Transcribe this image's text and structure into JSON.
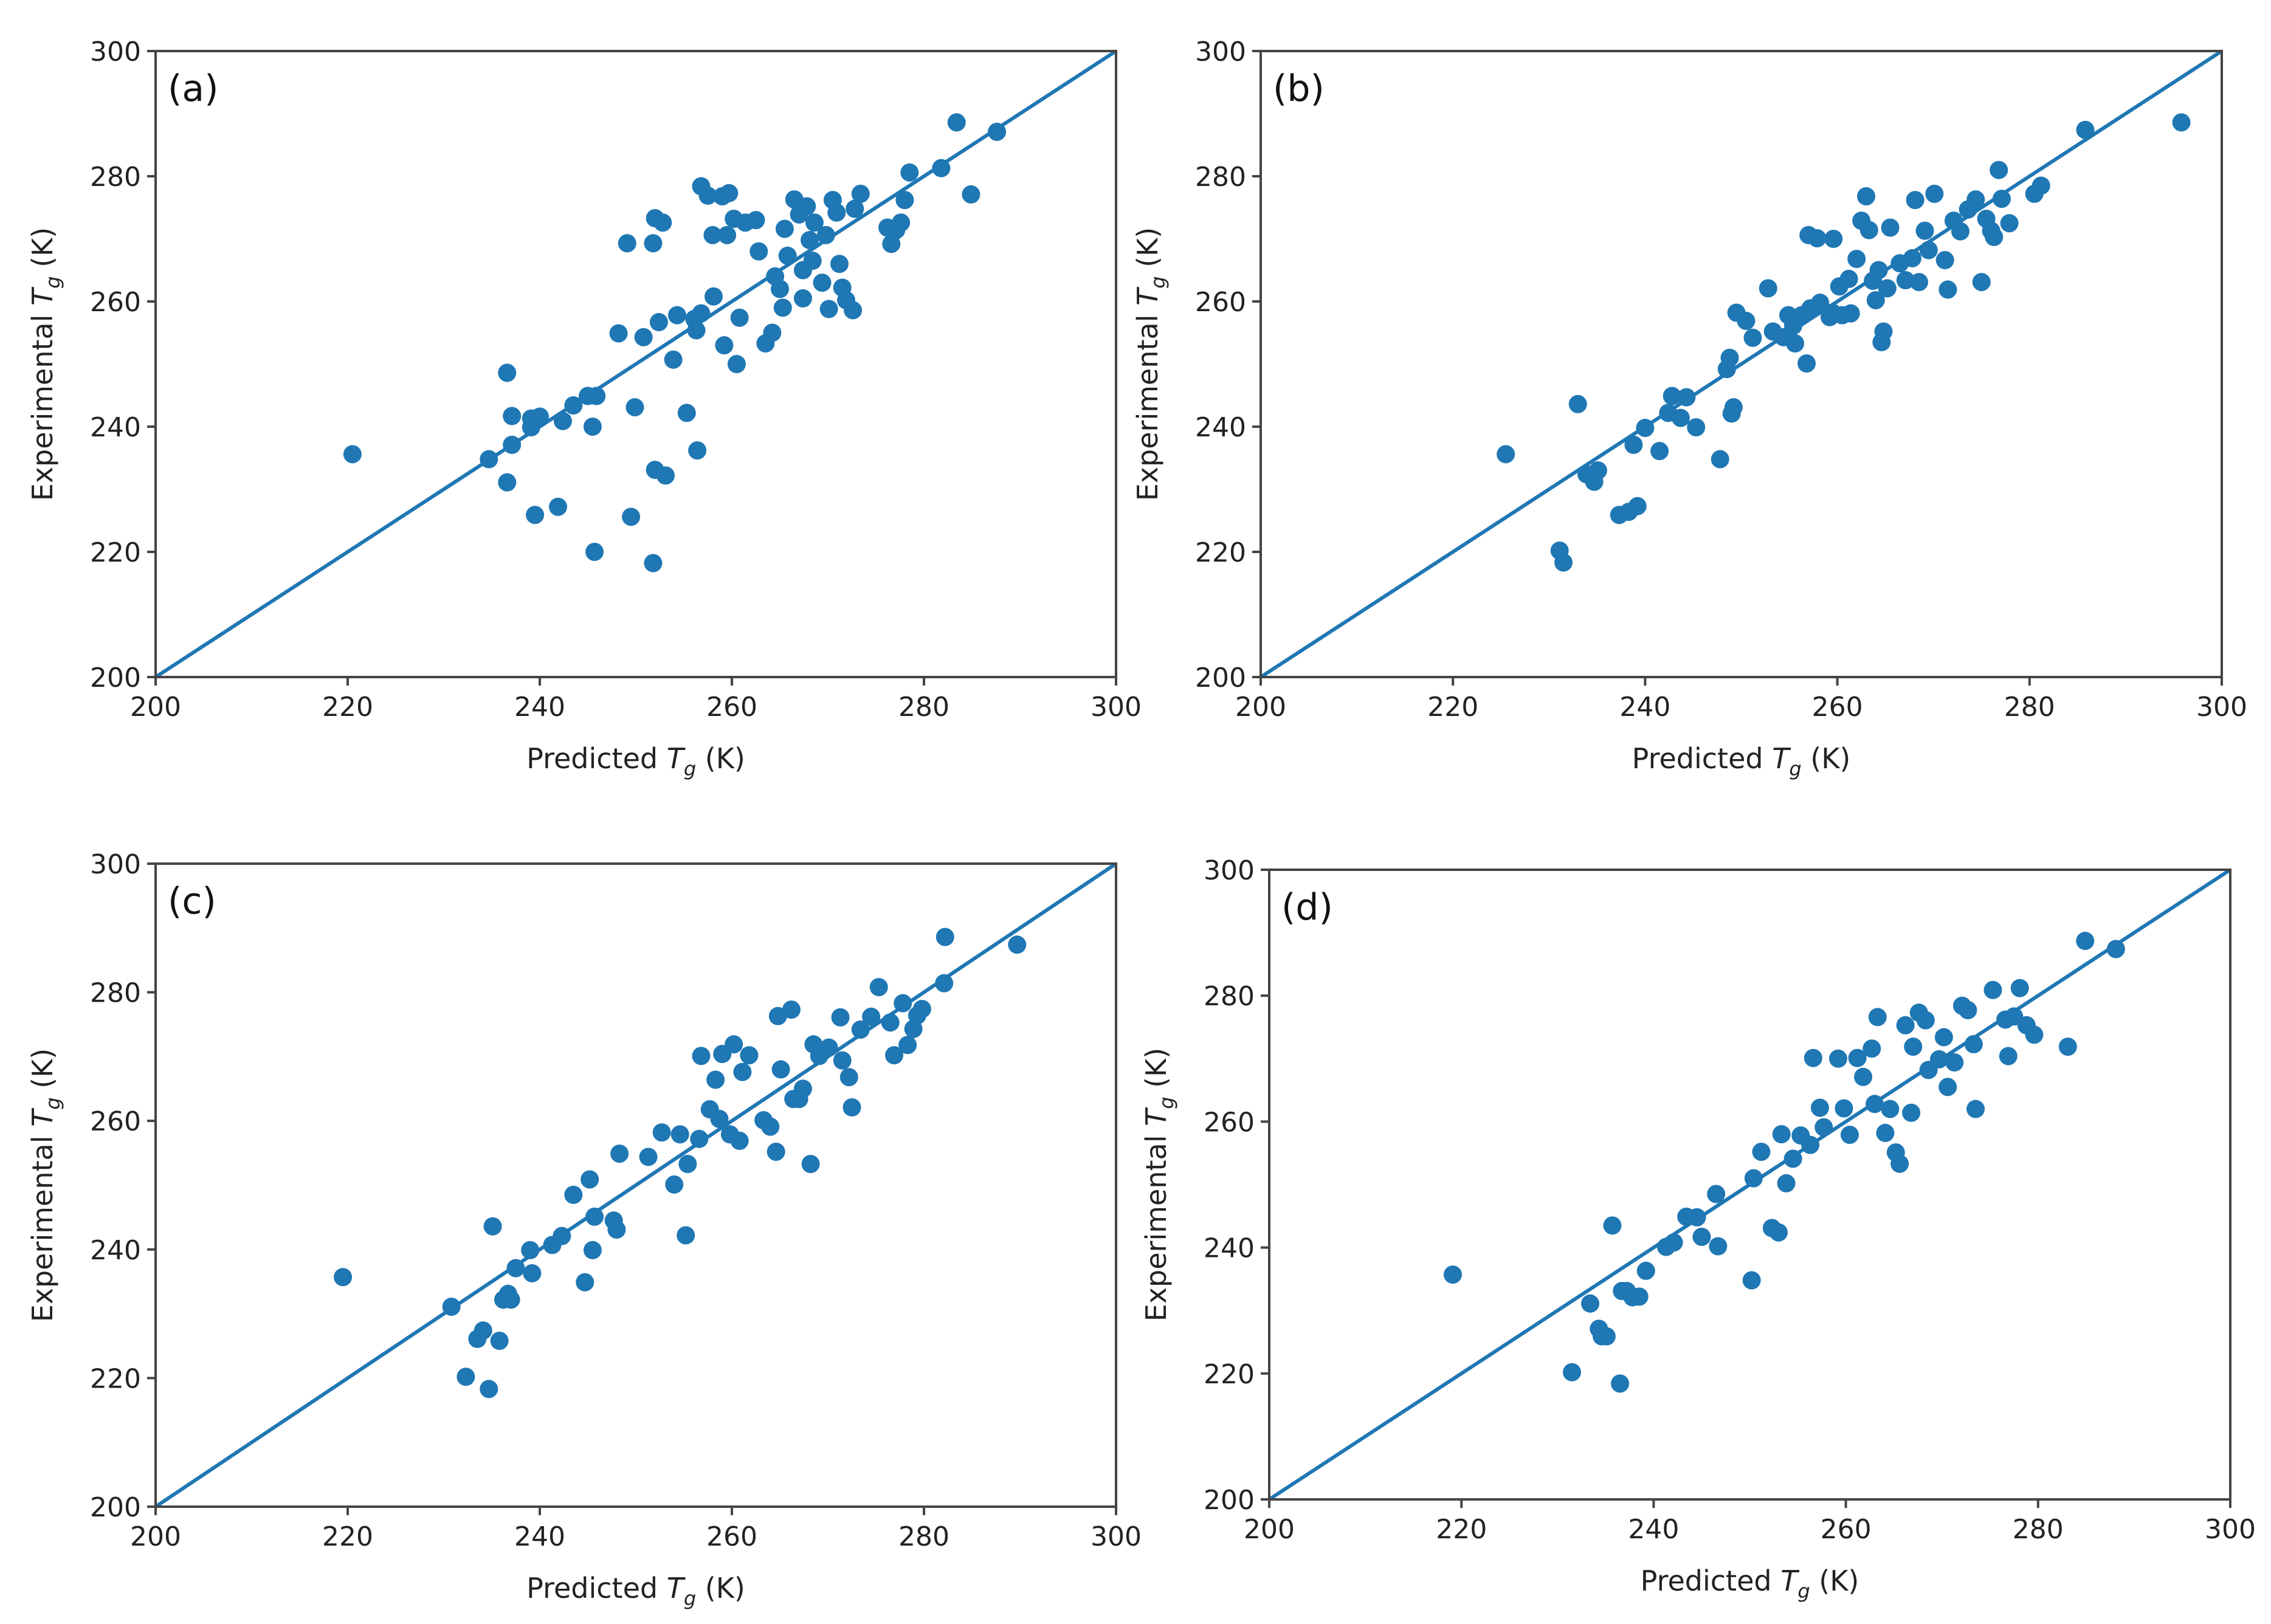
{
  "colors": {
    "marker": "#1f77b4",
    "line": "#1f77b4",
    "axis": "#444444"
  },
  "chart_data": [
    {
      "type": "scatter",
      "panel_label": "(a)",
      "xlabel_prefix": "Predicted ",
      "xlabel_symbol": "T",
      "xlabel_sub": "g",
      "xlabel_suffix": " (K)",
      "ylabel_prefix": "Experimental ",
      "ylabel_symbol": "T",
      "ylabel_sub": "g",
      "ylabel_suffix": " (K)",
      "xlim": [
        200,
        300
      ],
      "ylim": [
        200,
        300
      ],
      "xticks": [
        200,
        220,
        240,
        260,
        280,
        300
      ],
      "yticks": [
        200,
        220,
        240,
        260,
        280,
        300
      ],
      "reference_line": {
        "from": [
          200,
          200
        ],
        "to": [
          300,
          300
        ]
      },
      "points": [
        [
          220.5,
          235.6
        ],
        [
          234.7,
          234.8
        ],
        [
          236.6,
          248.6
        ],
        [
          236.6,
          231.1
        ],
        [
          237.1,
          241.7
        ],
        [
          237.1,
          237.1
        ],
        [
          239.1,
          241.3
        ],
        [
          239.1,
          239.9
        ],
        [
          239.5,
          225.9
        ],
        [
          240,
          241.6
        ],
        [
          241.9,
          227.2
        ],
        [
          242.4,
          240.9
        ],
        [
          243.5,
          243.4
        ],
        [
          245,
          244.9
        ],
        [
          245.5,
          240
        ],
        [
          245.7,
          220
        ],
        [
          245.9,
          244.9
        ],
        [
          248.2,
          254.9
        ],
        [
          249.1,
          269.3
        ],
        [
          249.5,
          225.6
        ],
        [
          249.9,
          243.1
        ],
        [
          250.8,
          254.3
        ],
        [
          251.8,
          218.2
        ],
        [
          251.8,
          269.3
        ],
        [
          252,
          273.3
        ],
        [
          252,
          233.1
        ],
        [
          252.4,
          256.7
        ],
        [
          252.8,
          272.6
        ],
        [
          253.1,
          232.2
        ],
        [
          253.9,
          250.7
        ],
        [
          254.3,
          257.8
        ],
        [
          255.3,
          242.2
        ],
        [
          256.1,
          257.2
        ],
        [
          256.3,
          255.4
        ],
        [
          256.4,
          236.2
        ],
        [
          256.8,
          278.4
        ],
        [
          256.8,
          258.1
        ],
        [
          257.5,
          276.9
        ],
        [
          258,
          270.6
        ],
        [
          258.1,
          260.8
        ],
        [
          259,
          276.8
        ],
        [
          259.2,
          253
        ],
        [
          259.5,
          270.6
        ],
        [
          259.7,
          277.3
        ],
        [
          260.2,
          273.2
        ],
        [
          260.5,
          250
        ],
        [
          260.8,
          257.4
        ],
        [
          261.4,
          272.6
        ],
        [
          262.5,
          273
        ],
        [
          262.8,
          268
        ],
        [
          263.5,
          253.3
        ],
        [
          264.2,
          255
        ],
        [
          264.5,
          264
        ],
        [
          265,
          262
        ],
        [
          265.3,
          259
        ],
        [
          265.5,
          271.6
        ],
        [
          265.8,
          267.3
        ],
        [
          266.5,
          276.3
        ],
        [
          267,
          273.9
        ],
        [
          267.4,
          265
        ],
        [
          267.4,
          260.5
        ],
        [
          267.8,
          275.2
        ],
        [
          268.1,
          269.8
        ],
        [
          268.4,
          266.5
        ],
        [
          268.6,
          272.6
        ],
        [
          269.4,
          263
        ],
        [
          269.8,
          270.6
        ],
        [
          270.1,
          258.8
        ],
        [
          270.5,
          276.2
        ],
        [
          270.9,
          274.2
        ],
        [
          271.2,
          266
        ],
        [
          271.5,
          262.2
        ],
        [
          271.9,
          260.2
        ],
        [
          272.6,
          258.6
        ],
        [
          272.8,
          274.8
        ],
        [
          273.4,
          277.2
        ],
        [
          276.2,
          271.8
        ],
        [
          276.6,
          269.2
        ],
        [
          277.1,
          271.4
        ],
        [
          277.6,
          272.6
        ],
        [
          278,
          276.2
        ],
        [
          278.5,
          280.6
        ],
        [
          281.8,
          281.3
        ],
        [
          283.4,
          288.6
        ],
        [
          284.9,
          277.1
        ],
        [
          287.6,
          287.1
        ]
      ]
    },
    {
      "type": "scatter",
      "panel_label": "(b)",
      "xlabel_prefix": "Predicted ",
      "xlabel_symbol": "T",
      "xlabel_sub": "g",
      "xlabel_suffix": " (K)",
      "ylabel_prefix": "Experimental ",
      "ylabel_symbol": "T",
      "ylabel_sub": "g",
      "ylabel_suffix": " (K)",
      "xlim": [
        200,
        300
      ],
      "ylim": [
        200,
        300
      ],
      "xticks": [
        200,
        220,
        240,
        260,
        280,
        300
      ],
      "yticks": [
        200,
        220,
        240,
        260,
        280,
        300
      ],
      "reference_line": {
        "from": [
          200,
          200
        ],
        "to": [
          300,
          300
        ]
      },
      "points": [
        [
          225.5,
          235.6
        ],
        [
          231.1,
          220.2
        ],
        [
          231.5,
          218.3
        ],
        [
          233,
          243.6
        ],
        [
          233.9,
          232.4
        ],
        [
          234.7,
          231.2
        ],
        [
          235.1,
          233
        ],
        [
          237.3,
          225.9
        ],
        [
          238.3,
          226.4
        ],
        [
          238.8,
          237.1
        ],
        [
          239.2,
          227.3
        ],
        [
          240,
          239.8
        ],
        [
          241.5,
          236.1
        ],
        [
          242.4,
          242.2
        ],
        [
          242.8,
          244.9
        ],
        [
          243.7,
          241.4
        ],
        [
          244.3,
          244.7
        ],
        [
          245.3,
          239.9
        ],
        [
          247.8,
          234.8
        ],
        [
          248.5,
          249.2
        ],
        [
          248.8,
          251
        ],
        [
          249,
          242.1
        ],
        [
          249.2,
          243.1
        ],
        [
          249.5,
          258.2
        ],
        [
          250.5,
          256.9
        ],
        [
          251.2,
          254.2
        ],
        [
          252.8,
          262.1
        ],
        [
          253.3,
          255.2
        ],
        [
          254.4,
          254.3
        ],
        [
          254.9,
          257.8
        ],
        [
          255.4,
          256.1
        ],
        [
          255.6,
          253.3
        ],
        [
          256.3,
          257.8
        ],
        [
          256.8,
          250.1
        ],
        [
          257.2,
          258.9
        ],
        [
          257,
          270.6
        ],
        [
          257.9,
          270.1
        ],
        [
          258.2,
          259.8
        ],
        [
          259.2,
          257.5
        ],
        [
          259.5,
          258.2
        ],
        [
          259.6,
          270
        ],
        [
          260.2,
          262.4
        ],
        [
          260.5,
          257.8
        ],
        [
          261.2,
          263.6
        ],
        [
          261.4,
          258.1
        ],
        [
          262,
          266.8
        ],
        [
          262.5,
          272.9
        ],
        [
          263,
          276.8
        ],
        [
          263.3,
          271.4
        ],
        [
          263.7,
          263.3
        ],
        [
          264,
          260.2
        ],
        [
          264.3,
          265
        ],
        [
          264.6,
          253.5
        ],
        [
          264.8,
          255.2
        ],
        [
          265.2,
          262.1
        ],
        [
          265.5,
          271.8
        ],
        [
          266.5,
          266.1
        ],
        [
          267.1,
          263.4
        ],
        [
          267.8,
          266.9
        ],
        [
          268.1,
          276.2
        ],
        [
          268.5,
          263.1
        ],
        [
          269.1,
          271.3
        ],
        [
          269.5,
          268.2
        ],
        [
          270.1,
          277.2
        ],
        [
          271.2,
          266.6
        ],
        [
          271.5,
          261.9
        ],
        [
          272.1,
          272.9
        ],
        [
          272.8,
          271.2
        ],
        [
          273.6,
          274.7
        ],
        [
          274.4,
          276.3
        ],
        [
          275,
          263.1
        ],
        [
          275.5,
          273.2
        ],
        [
          276,
          271.3
        ],
        [
          276.3,
          270.3
        ],
        [
          276.8,
          281
        ],
        [
          277.1,
          276.4
        ],
        [
          277.9,
          272.5
        ],
        [
          280.5,
          277.2
        ],
        [
          281.2,
          278.5
        ],
        [
          285.8,
          287.4
        ],
        [
          295.8,
          288.6
        ]
      ]
    },
    {
      "type": "scatter",
      "panel_label": "(c)",
      "xlabel_prefix": "Predicted ",
      "xlabel_symbol": "T",
      "xlabel_sub": "g",
      "xlabel_suffix": " (K)",
      "ylabel_prefix": "Experimental ",
      "ylabel_symbol": "T",
      "ylabel_sub": "g",
      "ylabel_suffix": " (K)",
      "xlim": [
        200,
        300
      ],
      "ylim": [
        200,
        300
      ],
      "xticks": [
        200,
        220,
        240,
        260,
        280,
        300
      ],
      "yticks": [
        200,
        220,
        240,
        260,
        280,
        300
      ],
      "reference_line": {
        "from": [
          200,
          200
        ],
        "to": [
          300,
          300
        ]
      },
      "points": [
        [
          219.5,
          235.7
        ],
        [
          230.8,
          231.1
        ],
        [
          232.3,
          220.2
        ],
        [
          233.5,
          226.1
        ],
        [
          234.1,
          227.4
        ],
        [
          234.7,
          218.3
        ],
        [
          235.1,
          243.6
        ],
        [
          235.8,
          225.8
        ],
        [
          236.2,
          232.2
        ],
        [
          236.7,
          233.1
        ],
        [
          237,
          232.2
        ],
        [
          237.5,
          237.1
        ],
        [
          239,
          239.9
        ],
        [
          239.2,
          236.3
        ],
        [
          241.3,
          240.7
        ],
        [
          242.3,
          242.1
        ],
        [
          243.5,
          248.5
        ],
        [
          244.7,
          234.9
        ],
        [
          245.2,
          250.9
        ],
        [
          245.5,
          239.9
        ],
        [
          245.7,
          245.1
        ],
        [
          247.7,
          244.5
        ],
        [
          248,
          243.1
        ],
        [
          248.3,
          254.9
        ],
        [
          251.3,
          254.4
        ],
        [
          252.7,
          258.2
        ],
        [
          254,
          250.1
        ],
        [
          254.6,
          257.9
        ],
        [
          255.2,
          242.2
        ],
        [
          255.4,
          253.3
        ],
        [
          256.6,
          257.2
        ],
        [
          256.8,
          270.1
        ],
        [
          257.7,
          261.8
        ],
        [
          258.3,
          266.4
        ],
        [
          258.7,
          260.3
        ],
        [
          259,
          270.4
        ],
        [
          259.8,
          257.9
        ],
        [
          260.2,
          271.9
        ],
        [
          260.8,
          256.9
        ],
        [
          261.1,
          267.6
        ],
        [
          261.8,
          270.2
        ],
        [
          263.3,
          260.1
        ],
        [
          264,
          259.1
        ],
        [
          264.6,
          255.2
        ],
        [
          264.8,
          276.3
        ],
        [
          265.1,
          268
        ],
        [
          266.2,
          277.3
        ],
        [
          266.4,
          263.4
        ],
        [
          267,
          263.4
        ],
        [
          267.4,
          265
        ],
        [
          268.2,
          253.3
        ],
        [
          268.5,
          271.9
        ],
        [
          269.1,
          270.1
        ],
        [
          270.1,
          271.4
        ],
        [
          271.3,
          276.1
        ],
        [
          271.5,
          269.4
        ],
        [
          272.2,
          266.8
        ],
        [
          272.5,
          262.1
        ],
        [
          273.4,
          274.2
        ],
        [
          274.5,
          276.2
        ],
        [
          275.3,
          280.8
        ],
        [
          276.5,
          275.3
        ],
        [
          276.9,
          270.2
        ],
        [
          277.8,
          278.3
        ],
        [
          278.3,
          271.8
        ],
        [
          278.9,
          274.3
        ],
        [
          279.3,
          276.4
        ],
        [
          279.8,
          277.4
        ],
        [
          282.1,
          281.4
        ],
        [
          282.2,
          288.6
        ],
        [
          289.7,
          287.4
        ]
      ]
    },
    {
      "type": "scatter",
      "panel_label": "(d)",
      "xlabel_prefix": "Predicted ",
      "xlabel_symbol": "T",
      "xlabel_sub": "g",
      "xlabel_suffix": " (K)",
      "ylabel_prefix": "Experimental ",
      "ylabel_symbol": "T",
      "ylabel_sub": "g",
      "ylabel_suffix": " (K)",
      "xlim": [
        200,
        300
      ],
      "ylim": [
        200,
        300
      ],
      "xticks": [
        200,
        220,
        240,
        260,
        280,
        300
      ],
      "yticks": [
        200,
        220,
        240,
        260,
        280,
        300
      ],
      "reference_line": {
        "from": [
          200,
          200
        ],
        "to": [
          300,
          300
        ]
      },
      "points": [
        [
          219.1,
          235.7
        ],
        [
          231.5,
          220.2
        ],
        [
          233.4,
          231.1
        ],
        [
          234.3,
          227.1
        ],
        [
          234.6,
          225.9
        ],
        [
          235.1,
          225.9
        ],
        [
          235.7,
          243.5
        ],
        [
          236.5,
          218.4
        ],
        [
          236.7,
          233.1
        ],
        [
          237.2,
          233.1
        ],
        [
          237.8,
          232.1
        ],
        [
          238.5,
          232.2
        ],
        [
          239.2,
          236.3
        ],
        [
          241.3,
          240.1
        ],
        [
          242.1,
          240.8
        ],
        [
          243.4,
          244.9
        ],
        [
          244.5,
          244.8
        ],
        [
          245,
          241.7
        ],
        [
          246.5,
          248.5
        ],
        [
          246.7,
          240.2
        ],
        [
          250.2,
          234.8
        ],
        [
          250.4,
          251
        ],
        [
          251.2,
          255.2
        ],
        [
          252.3,
          243.1
        ],
        [
          253,
          242.4
        ],
        [
          253.3,
          258
        ],
        [
          253.8,
          250.2
        ],
        [
          254.5,
          254.1
        ],
        [
          255.3,
          257.8
        ],
        [
          256.3,
          256.3
        ],
        [
          256.6,
          270.1
        ],
        [
          257.3,
          262.2
        ],
        [
          257.7,
          259.1
        ],
        [
          259.2,
          270
        ],
        [
          259.8,
          262.1
        ],
        [
          260.4,
          257.9
        ],
        [
          261.2,
          270.1
        ],
        [
          261.8,
          267.1
        ],
        [
          262.7,
          271.6
        ],
        [
          263,
          262.8
        ],
        [
          263.3,
          276.6
        ],
        [
          264.1,
          258.2
        ],
        [
          264.6,
          262
        ],
        [
          265.2,
          255.1
        ],
        [
          265.6,
          253.3
        ],
        [
          266.2,
          275.3
        ],
        [
          266.8,
          261.4
        ],
        [
          267,
          271.9
        ],
        [
          267.6,
          277.3
        ],
        [
          268.3,
          276.1
        ],
        [
          268.6,
          268.2
        ],
        [
          269.7,
          269.9
        ],
        [
          270.2,
          273.4
        ],
        [
          270.6,
          265.5
        ],
        [
          271.3,
          269.4
        ],
        [
          272.1,
          278.4
        ],
        [
          272.7,
          277.7
        ],
        [
          273.3,
          272.3
        ],
        [
          273.5,
          262
        ],
        [
          275.3,
          280.9
        ],
        [
          276.6,
          276.2
        ],
        [
          276.9,
          270.4
        ],
        [
          277.5,
          276.7
        ],
        [
          278.1,
          281.2
        ],
        [
          278.8,
          275.3
        ],
        [
          279.6,
          273.8
        ],
        [
          283.1,
          271.9
        ],
        [
          284.9,
          288.7
        ],
        [
          288.1,
          287.4
        ]
      ]
    }
  ]
}
